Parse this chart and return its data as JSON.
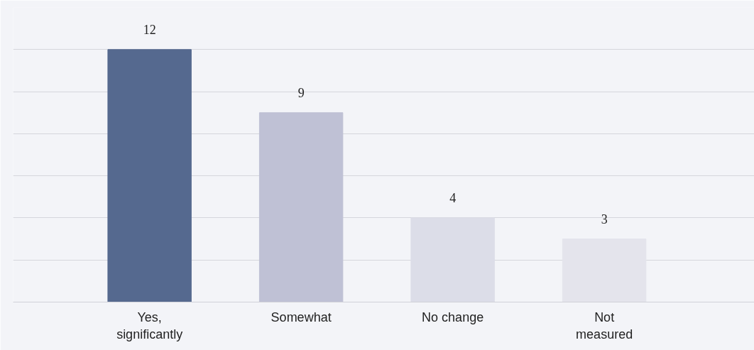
{
  "chart_data": {
    "type": "bar",
    "categories": [
      "Yes,\nsignificantly",
      "Somewhat",
      "No change",
      "Not\nmeasured"
    ],
    "values": [
      12,
      9,
      4,
      3
    ],
    "colors": [
      "#55698f",
      "#bfc1d5",
      "#dcdde8",
      "#e4e4ec"
    ],
    "ylim": [
      0,
      14
    ],
    "yticks": [
      {
        "value": 0,
        "label": null
      },
      {
        "value": 2,
        "label": null
      },
      {
        "value": 4,
        "label": null
      },
      {
        "value": 6,
        "label": null
      },
      {
        "value": 8,
        "label": null
      },
      {
        "value": 10,
        "label": null
      },
      {
        "value": 12,
        "label": null
      },
      {
        "value": 14,
        "label": null
      }
    ],
    "grid": "y",
    "tick_labels": "x",
    "data_labels": true
  }
}
